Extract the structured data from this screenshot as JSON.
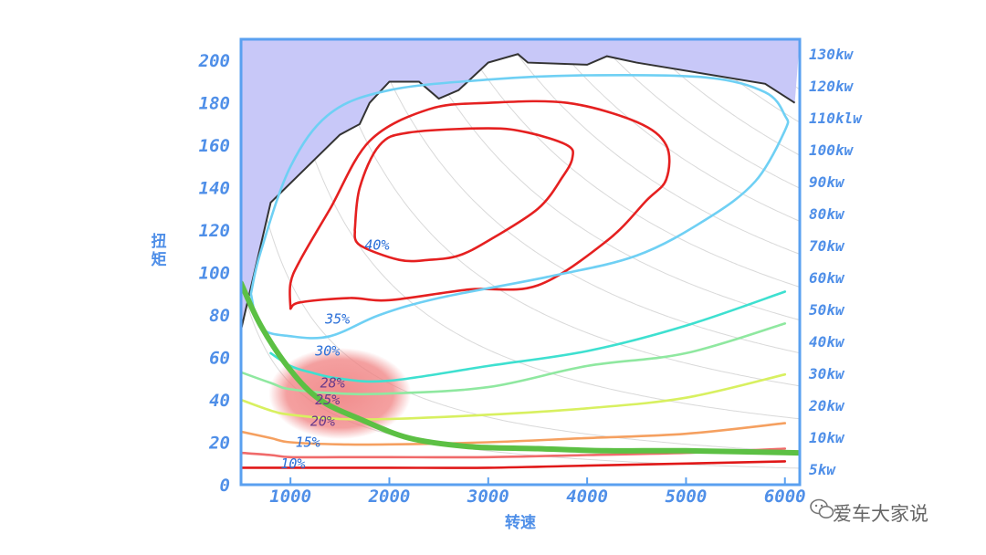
{
  "chart_data": {
    "type": "line",
    "subtype": "engine-efficiency-map",
    "xlabel": "转速",
    "ylabel": "扭矩",
    "xlim": [
      500,
      6150
    ],
    "ylim": [
      0,
      210
    ],
    "x_ticks": [
      "1000",
      "2000",
      "3000",
      "4000",
      "5000",
      "6000"
    ],
    "y_ticks": [
      "0",
      "20",
      "40",
      "60",
      "80",
      "100",
      "120",
      "140",
      "160",
      "180",
      "200"
    ],
    "power_ticks": [
      "130kw",
      "120kw",
      "110klw",
      "100kw",
      "90kw",
      "80kw",
      "70kw",
      "60kw",
      "50kw",
      "40kw",
      "30kw",
      "20kw",
      "10kw",
      "5kw"
    ],
    "max_torque_curve": {
      "name": "max-torque",
      "color": "#333333",
      "fill": "#c8c8f8",
      "x": [
        500,
        800,
        1500,
        1700,
        1800,
        2000,
        2300,
        2500,
        2700,
        3000,
        3300,
        3400,
        4000,
        4200,
        4500,
        5800,
        6100
      ],
      "y": [
        73,
        133,
        165,
        170,
        180,
        190,
        190,
        182,
        186,
        199,
        203,
        199,
        198,
        202,
        199,
        189,
        180
      ]
    },
    "efficiency_contours": [
      {
        "label": "40%",
        "color": "#e52020",
        "x": [
          1650,
          1700,
          1900,
          2200,
          3000,
          3400,
          3800,
          3850,
          3750,
          3500,
          3000,
          2700,
          2400,
          2100,
          1700,
          1650
        ],
        "y": [
          120,
          140,
          160,
          166,
          168,
          166,
          160,
          154,
          145,
          130,
          115,
          108,
          106,
          106,
          113,
          120
        ]
      },
      {
        "label": "35%",
        "color": "#e52020",
        "x": [
          1000,
          1000,
          1100,
          1400,
          1800,
          2400,
          3000,
          3800,
          4500,
          4800,
          4800,
          4600,
          4200,
          3500,
          2800,
          2000,
          1600,
          1100,
          1000
        ],
        "y": [
          83,
          95,
          106,
          130,
          162,
          177,
          180,
          180,
          171,
          160,
          144,
          134,
          115,
          94,
          92,
          87,
          88,
          86,
          83
        ]
      },
      {
        "label": "30%",
        "color": "#6fd0f4",
        "x": [
          600,
          700,
          1000,
          1400,
          2000,
          3000,
          4000,
          5200,
          5800,
          6000,
          6000,
          5700,
          5200,
          4500,
          3600,
          2500,
          1900,
          1400,
          1000,
          700,
          600
        ],
        "y": [
          90,
          110,
          150,
          175,
          186,
          191,
          193,
          192,
          185,
          174,
          167,
          143,
          125,
          108,
          98,
          88,
          80,
          70,
          70,
          74,
          90
        ]
      },
      {
        "label": "28%",
        "color": "#3ee0d0",
        "x": [
          800,
          1000,
          1200,
          1500,
          2000,
          3000,
          4000,
          5000,
          6000
        ],
        "y": [
          62,
          56,
          53,
          50,
          49,
          56,
          63,
          75,
          91
        ]
      },
      {
        "label": "25%",
        "color": "#8fe8a0",
        "x": [
          500,
          800,
          1000,
          1500,
          2000,
          3000,
          4000,
          5000,
          6000
        ],
        "y": [
          53,
          48,
          45,
          43,
          43,
          46,
          56,
          62,
          76
        ]
      },
      {
        "label": "20%",
        "color": "#d8f060",
        "x": [
          500,
          800,
          1000,
          1500,
          2000,
          3000,
          4000,
          5000,
          6000
        ],
        "y": [
          40,
          35,
          33,
          31,
          31,
          33,
          36,
          41,
          52
        ]
      },
      {
        "label": "15%",
        "color": "#f5a060",
        "x": [
          500,
          800,
          1000,
          1500,
          2000,
          3000,
          4000,
          5000,
          6000
        ],
        "y": [
          25,
          22,
          20,
          19,
          19,
          20,
          22,
          24,
          29
        ]
      },
      {
        "label": "10%",
        "color": "#f06a6a",
        "x": [
          500,
          800,
          1000,
          1500,
          2000,
          3000,
          4000,
          5000,
          6000
        ],
        "y": [
          15,
          14,
          13,
          13,
          13,
          13,
          14,
          15,
          17
        ]
      },
      {
        "label": "",
        "color": "#e01818",
        "x": [
          500,
          1000,
          2000,
          3000,
          4000,
          5000,
          6000
        ],
        "y": [
          8,
          8,
          8,
          8,
          9,
          10,
          11
        ]
      }
    ],
    "highlight_curve": {
      "color": "#5cc044",
      "x": [
        500,
        700,
        1000,
        1300,
        1700,
        2200,
        2800,
        3500,
        4200,
        5000,
        6150
      ],
      "y": [
        95,
        75,
        54,
        40,
        31,
        22,
        18,
        17,
        16,
        16,
        15
      ]
    },
    "highlight_region": {
      "center_x": 1500,
      "center_y": 43,
      "color": "#f08080"
    }
  },
  "watermark": {
    "icon": "wechat-icon",
    "text": "爱车大家说"
  }
}
